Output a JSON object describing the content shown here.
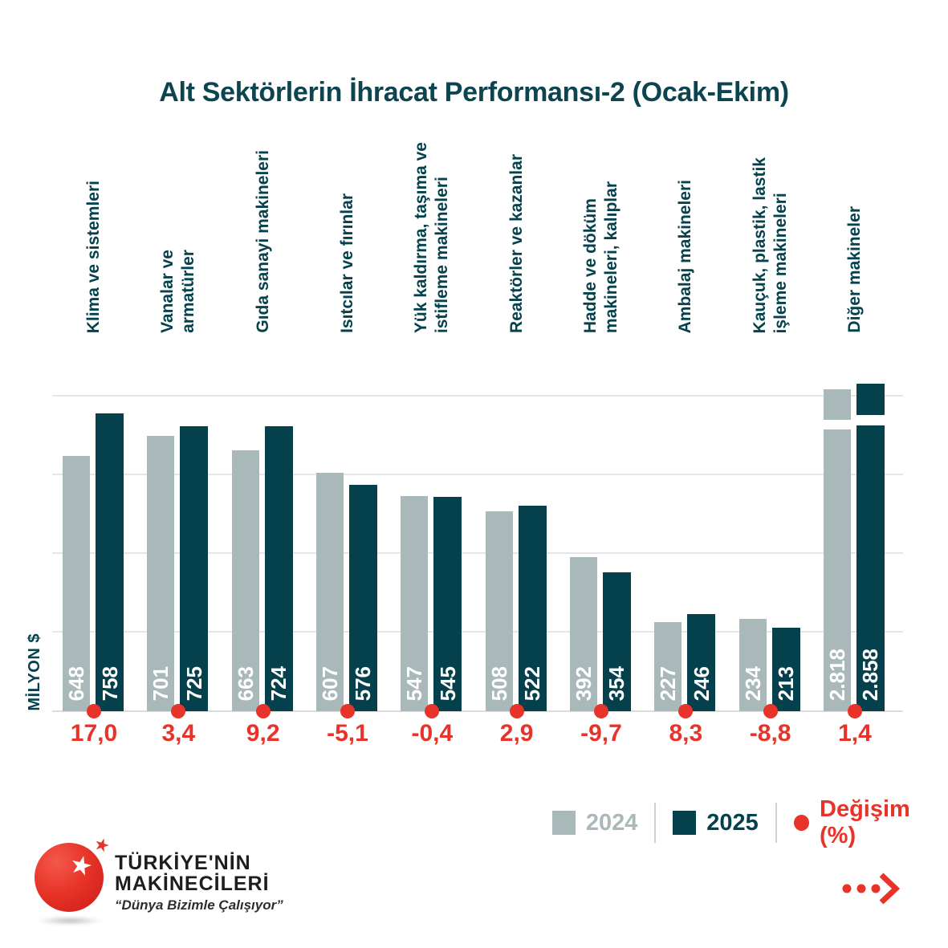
{
  "title": "Alt Sektörlerin İhracat Performansı-2 (Ocak-Ekim)",
  "y_axis_label": "MİLYON $",
  "chart_data": {
    "type": "bar",
    "title": "Alt Sektörlerin İhracat Performansı-2 (Ocak-Ekim)",
    "ylabel": "MİLYON $",
    "ylim": [
      0,
      800
    ],
    "gridlines": [
      200,
      400,
      600,
      800
    ],
    "grid": true,
    "legend_position": "bottom-right",
    "categories": [
      "Klima ve sistemleri",
      "Vanalar ve armatürler",
      "Gıda sanayi makineleri",
      "Isıtcılar ve fırınlar",
      "Yük kaldırma, taşıma ve istifleme makineleri",
      "Reaktörler ve kazanlar",
      "Hadde ve döküm makineleri, kalıplar",
      "Ambalaj makineleri",
      "Kauçuk, plastik, lastik işleme makineleri",
      "Diğer makineler"
    ],
    "category_label_lines": [
      [
        "Klima ve sistemleri"
      ],
      [
        "Vanalar ve",
        "armatürler"
      ],
      [
        "Gıda sanayi makineleri"
      ],
      [
        "Isıtcılar ve fırınlar"
      ],
      [
        "Yük kaldırma, taşıma ve",
        "istifleme makineleri"
      ],
      [
        "Reaktörler ve kazanlar"
      ],
      [
        "Hadde ve döküm",
        "makineleri, kalıplar"
      ],
      [
        "Ambalaj makineleri"
      ],
      [
        "Kauçuk, plastik, lastik",
        "işleme makineleri"
      ],
      [
        "Diğer makineler"
      ]
    ],
    "series": [
      {
        "name": "2024",
        "color": "#a9b8b8",
        "values": [
          648,
          701,
          663,
          607,
          547,
          508,
          392,
          227,
          234,
          2818
        ],
        "display": [
          "648",
          "701",
          "663",
          "607",
          "547",
          "508",
          "392",
          "227",
          "234",
          "2.818"
        ]
      },
      {
        "name": "2025",
        "color": "#04414c",
        "values": [
          758,
          725,
          724,
          576,
          545,
          522,
          354,
          246,
          213,
          2858
        ],
        "display": [
          "758",
          "725",
          "724",
          "576",
          "545",
          "522",
          "354",
          "246",
          "213",
          "2.858"
        ]
      }
    ],
    "change_percent": {
      "name": "Değişim (%)",
      "color": "#e8332a",
      "values": [
        17.0,
        3.4,
        9.2,
        -5.1,
        -0.4,
        2.9,
        -9.7,
        8.3,
        -8.8,
        1.4
      ],
      "display": [
        "17,0",
        "3,4",
        "9,2",
        "-5,1",
        "-0,4",
        "2,9",
        "-9,7",
        "8,3",
        "-8,8",
        "1,4"
      ]
    },
    "broken_indices": [
      9
    ]
  },
  "legend": {
    "item_2024": "2024",
    "item_2025": "2025",
    "item_change": "Değişim (%)"
  },
  "logo": {
    "name_line1": "TÜRKİYE'NİN",
    "name_line2": "MAKİNECİLERİ",
    "tagline": "“Dünya Bizimle Çalışıyor”"
  },
  "colors": {
    "bar_2024": "#a9b8b8",
    "bar_2025": "#04414c",
    "change_red": "#e8332a",
    "text_teal": "#06424d",
    "gridline": "#e6e6e6"
  }
}
